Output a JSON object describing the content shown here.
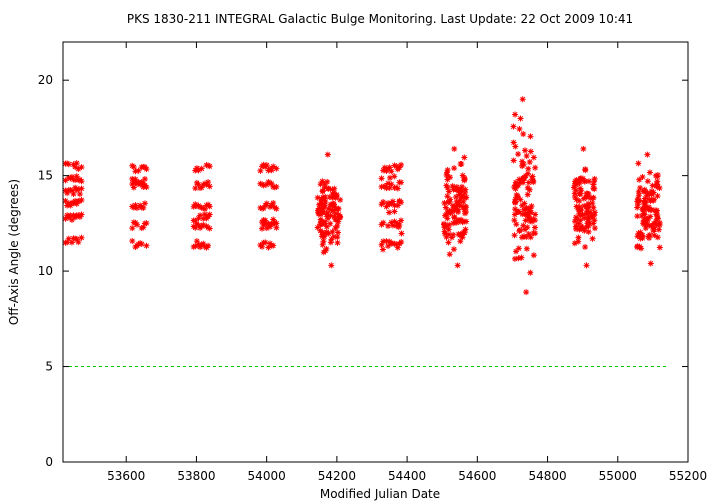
{
  "chart_data": {
    "type": "scatter",
    "title": "PKS 1830-211   INTEGRAL Galactic Bulge Monitoring.  Last Update: 22 Oct 2009 10:41",
    "xlabel": "Modified Julian Date",
    "ylabel": "Off-Axis Angle (degrees)",
    "xlim": [
      53420,
      55200
    ],
    "ylim": [
      0,
      22
    ],
    "x_ticks": [
      53600,
      53800,
      54000,
      54200,
      54400,
      54600,
      54800,
      55000,
      55200
    ],
    "y_ticks": [
      0,
      5,
      10,
      15,
      20
    ],
    "grid": false,
    "legend": "none",
    "point_color": "#ff0000",
    "reference_line": {
      "y": 5,
      "color": "#00c800",
      "style": "dashed"
    },
    "visibility_windows": [
      {
        "x_start": 53425,
        "x_end": 53475,
        "y_levels": [
          11.6,
          12.8,
          13.6,
          14.2,
          14.8,
          15.5
        ]
      },
      {
        "x_start": 53615,
        "x_end": 53660,
        "y_levels": [
          11.4,
          12.4,
          13.4,
          14.5,
          14.7,
          15.4
        ]
      },
      {
        "x_start": 53790,
        "x_end": 53840,
        "y_levels": [
          11.4,
          12.4,
          12.8,
          13.4,
          14.5,
          15.4
        ]
      },
      {
        "x_start": 53980,
        "x_end": 54030,
        "y_levels": [
          11.4,
          12.4,
          12.6,
          13.4,
          14.5,
          15.4
        ]
      },
      {
        "x_start": 54145,
        "x_end": 54210,
        "y_min": 10.3,
        "y_max": 16.1
      },
      {
        "x_start": 54325,
        "x_end": 54385,
        "y_levels": [
          11.4,
          12.5,
          13.5,
          14.5,
          15.4
        ],
        "y_min": 10.7,
        "y_max": 15.8
      },
      {
        "x_start": 54505,
        "x_end": 54570,
        "y_min": 10.3,
        "y_max": 16.4
      },
      {
        "x_start": 54700,
        "x_end": 54765,
        "y_min": 8.9,
        "y_max": 19.0
      },
      {
        "x_start": 54875,
        "x_end": 54935,
        "y_min": 10.3,
        "y_max": 16.4
      },
      {
        "x_start": 55055,
        "x_end": 55120,
        "y_min": 10.4,
        "y_max": 16.1
      }
    ]
  }
}
